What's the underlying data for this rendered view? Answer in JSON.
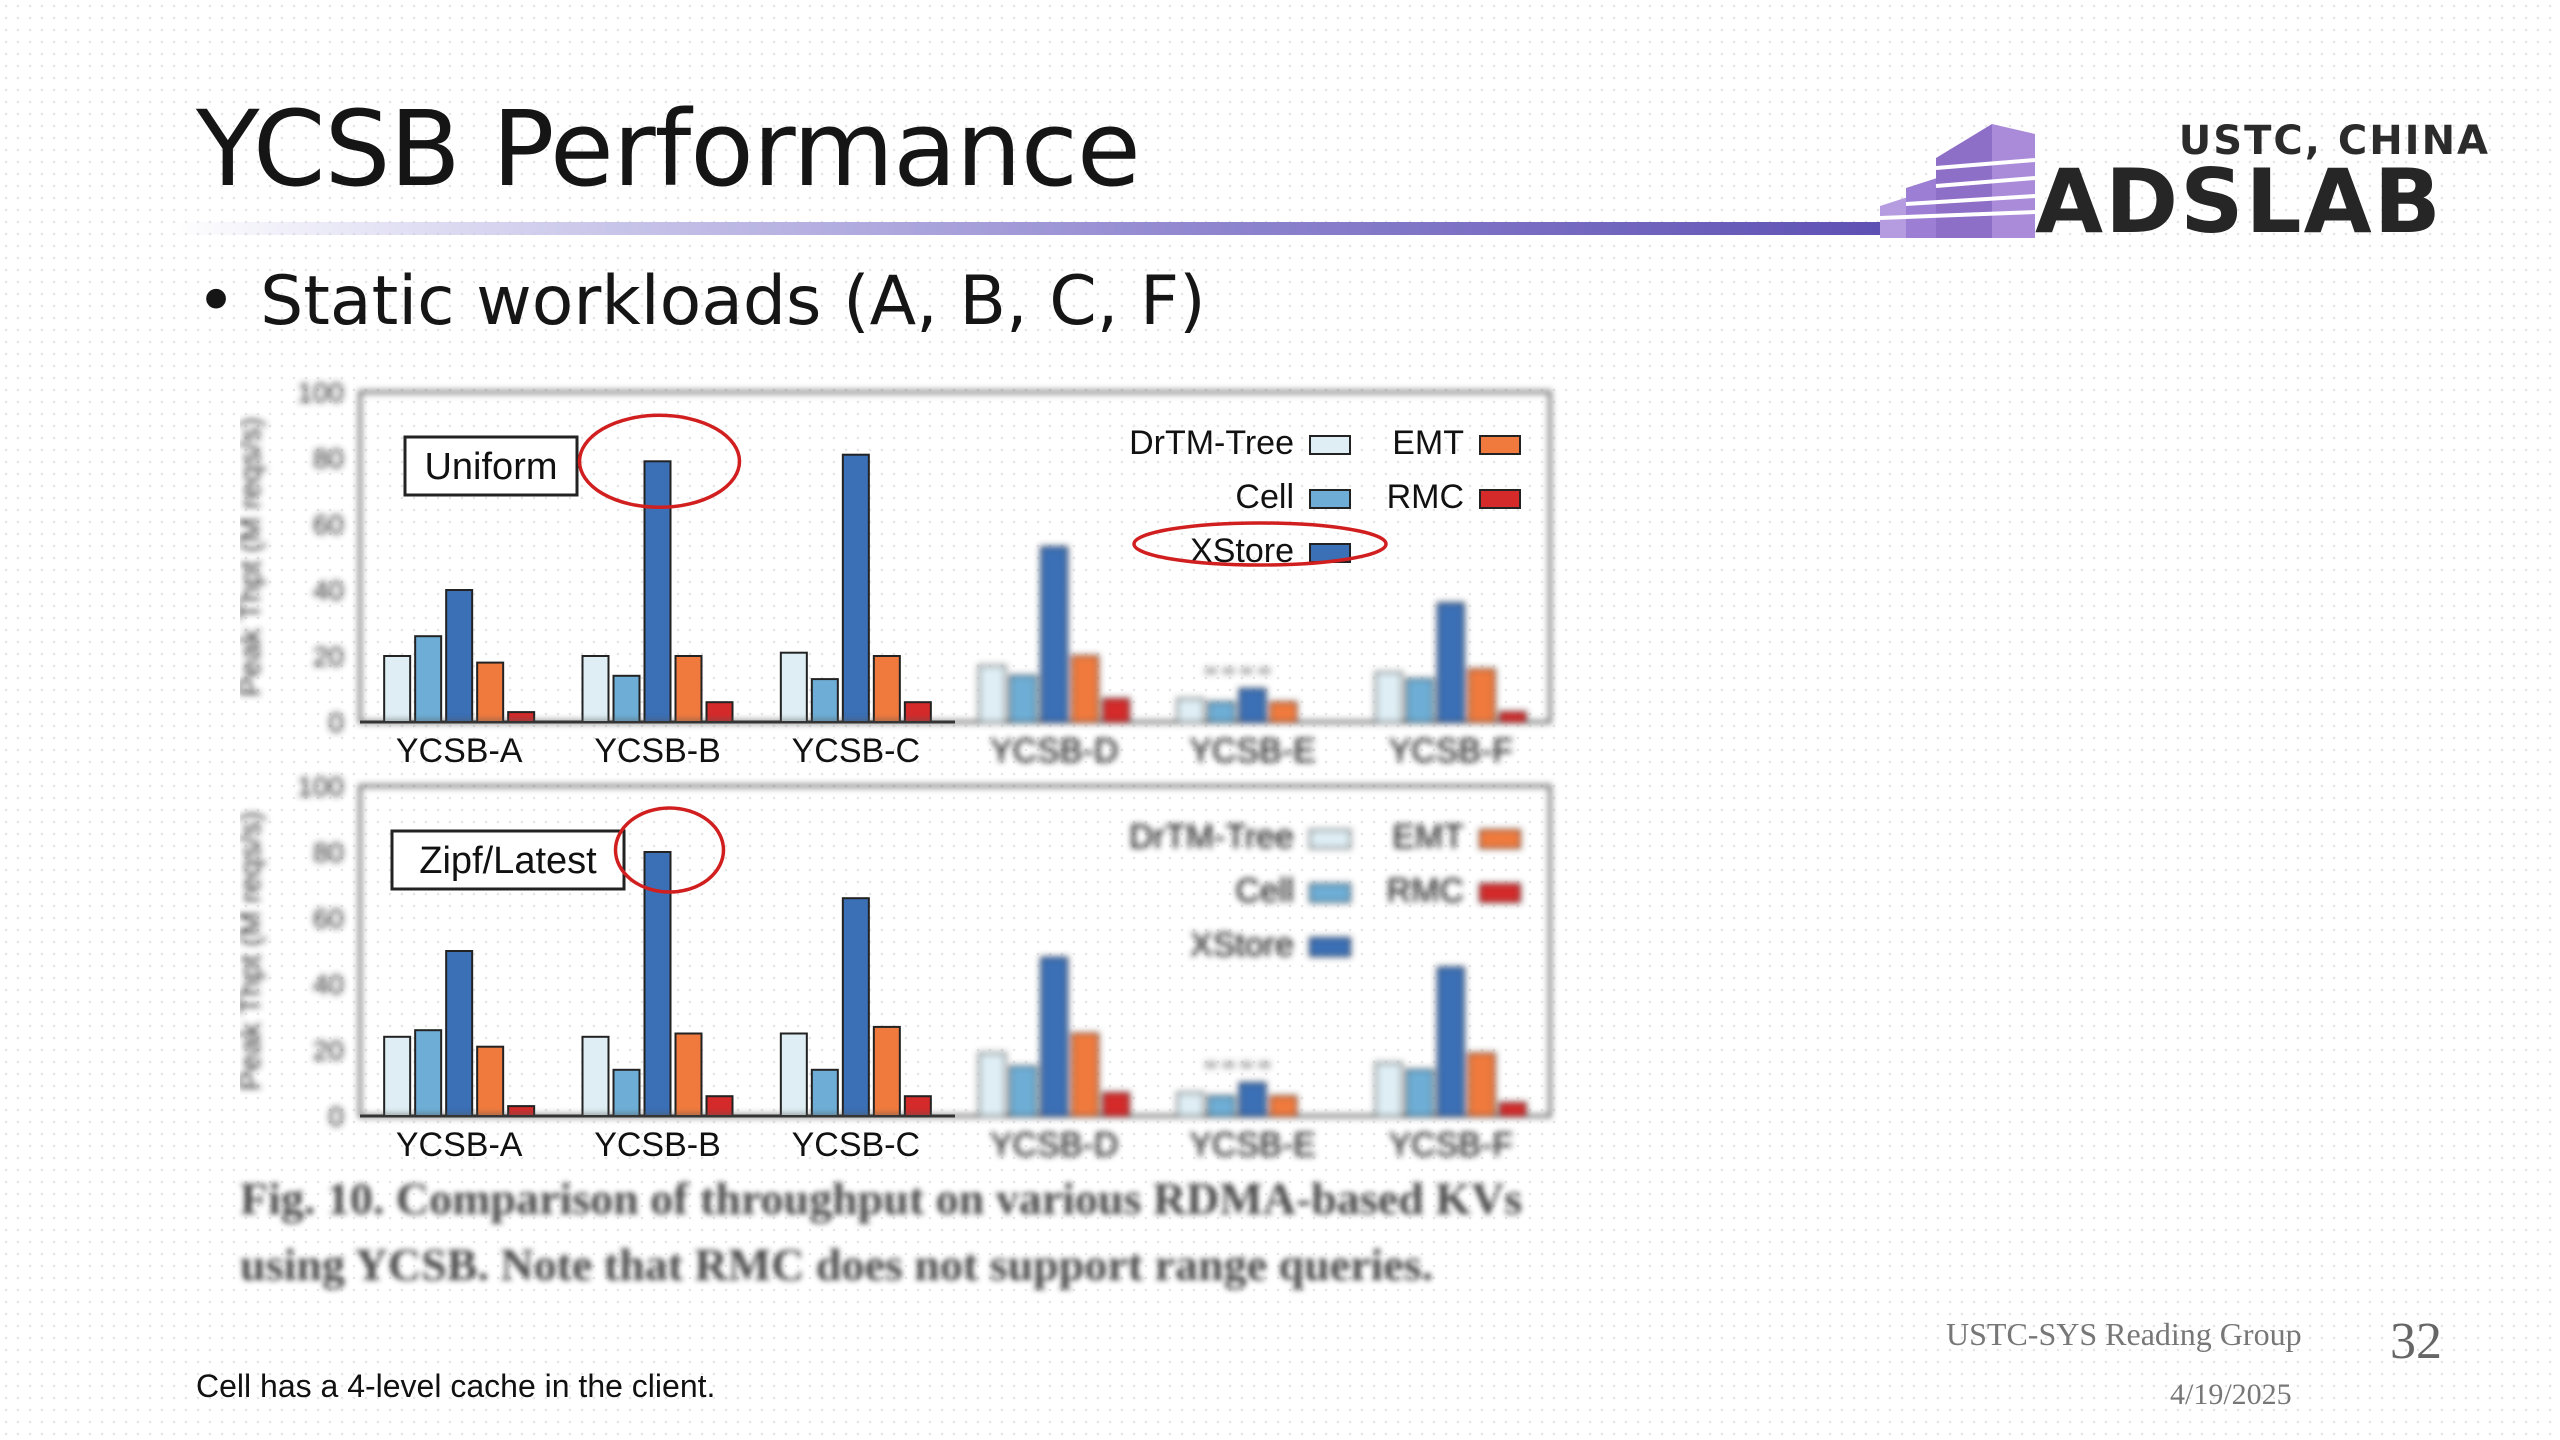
{
  "slide": {
    "title": "YCSB Performance",
    "bullet": "Static workloads (A, B, C, F)",
    "footnote": "Cell has a 4-level cache in the client.",
    "footer_group": "USTC-SYS Reading Group",
    "footer_date": "4/19/2025",
    "page_number": "32"
  },
  "logo": {
    "top_text": "USTC, CHINA",
    "main_text": "ADSLAB",
    "color": "#8e6fc7"
  },
  "figure": {
    "caption_line1": "Fig. 10. Comparison of throughput on various RDMA-based KVs",
    "caption_line2": "using YCSB. Note that RMC does not support range queries.",
    "blurred_workloads": [
      "YCSB-D",
      "YCSB-E",
      "YCSB-F"
    ]
  },
  "chart_data": [
    {
      "type": "bar",
      "panel_label": "Uniform",
      "ylabel": "Peak Thpt (M reqs/s)",
      "ylim": [
        0,
        100
      ],
      "yticks": [
        0,
        20,
        40,
        60,
        80,
        100
      ],
      "categories": [
        "YCSB-A",
        "YCSB-B",
        "YCSB-C",
        "YCSB-D",
        "YCSB-E",
        "YCSB-F"
      ],
      "series": [
        {
          "name": "DrTM-Tree",
          "color": "#deeef4",
          "values": [
            20,
            20,
            21,
            17,
            7,
            15
          ]
        },
        {
          "name": "Cell",
          "color": "#6eaed6",
          "values": [
            26,
            14,
            13,
            14,
            6,
            13
          ]
        },
        {
          "name": "XStore",
          "color": "#3b6fb6",
          "values": [
            40,
            79,
            81,
            53,
            10,
            36
          ]
        },
        {
          "name": "EMT",
          "color": "#f07a3e",
          "values": [
            18,
            20,
            20,
            20,
            6,
            16
          ]
        },
        {
          "name": "RMC",
          "color": "#d42a2a",
          "values": [
            3,
            6,
            6,
            7,
            0,
            3
          ]
        }
      ],
      "highlight_category": "YCSB-B",
      "highlight_legend": "XStore",
      "legend": "top-right"
    },
    {
      "type": "bar",
      "panel_label": "Zipf/Latest",
      "ylabel": "Peak Thpt (M reqs/s)",
      "ylim": [
        0,
        100
      ],
      "yticks": [
        0,
        20,
        40,
        60,
        80,
        100
      ],
      "categories": [
        "YCSB-A",
        "YCSB-B",
        "YCSB-C",
        "YCSB-D",
        "YCSB-E",
        "YCSB-F"
      ],
      "series": [
        {
          "name": "DrTM-Tree",
          "color": "#deeef4",
          "values": [
            24,
            24,
            25,
            19,
            7,
            16
          ]
        },
        {
          "name": "Cell",
          "color": "#6eaed6",
          "values": [
            26,
            14,
            14,
            15,
            6,
            14
          ]
        },
        {
          "name": "XStore",
          "color": "#3b6fb6",
          "values": [
            50,
            80,
            66,
            48,
            10,
            45
          ]
        },
        {
          "name": "EMT",
          "color": "#f07a3e",
          "values": [
            21,
            25,
            27,
            25,
            6,
            19
          ]
        },
        {
          "name": "RMC",
          "color": "#d42a2a",
          "values": [
            3,
            6,
            6,
            7,
            0,
            4
          ]
        }
      ],
      "highlight_category": "YCSB-B",
      "legend": "top-right"
    }
  ]
}
